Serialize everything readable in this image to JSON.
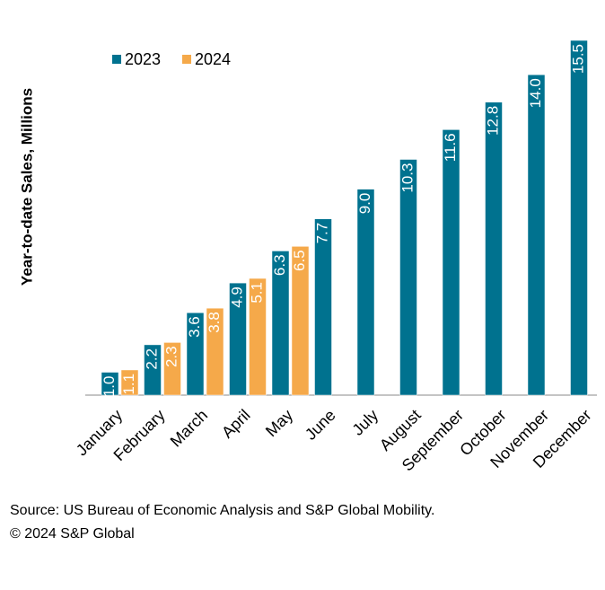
{
  "chart_data": {
    "type": "bar",
    "y_label": "Year-to-date Sales, Millions",
    "categories": [
      "January",
      "February",
      "March",
      "April",
      "May",
      "June",
      "July",
      "August",
      "September",
      "October",
      "November",
      "December"
    ],
    "series": [
      {
        "name": "2023",
        "color": "#00728f",
        "values": [
          1.0,
          2.2,
          3.6,
          4.9,
          6.3,
          7.7,
          9.0,
          10.3,
          11.6,
          12.8,
          14.0,
          15.5
        ],
        "value_labels": [
          "1.0",
          "2.2",
          "3.6",
          "4.9",
          "6.3",
          "7.7",
          "9.0",
          "10.3",
          "11.6",
          "12.8",
          "14.0",
          "15.5"
        ]
      },
      {
        "name": "2024",
        "color": "#f5a94a",
        "values": [
          1.1,
          2.3,
          3.8,
          5.1,
          6.5,
          null,
          null,
          null,
          null,
          null,
          null,
          null
        ],
        "value_labels": [
          "1.1",
          "2.3",
          "3.8",
          "5.1",
          "6.5",
          null,
          null,
          null,
          null,
          null,
          null,
          null
        ]
      }
    ],
    "legend": "top-left",
    "source": "Source: US Bureau of Economic Analysis and S&P Global Mobility.",
    "copyright": "© 2024 S&P Global"
  }
}
